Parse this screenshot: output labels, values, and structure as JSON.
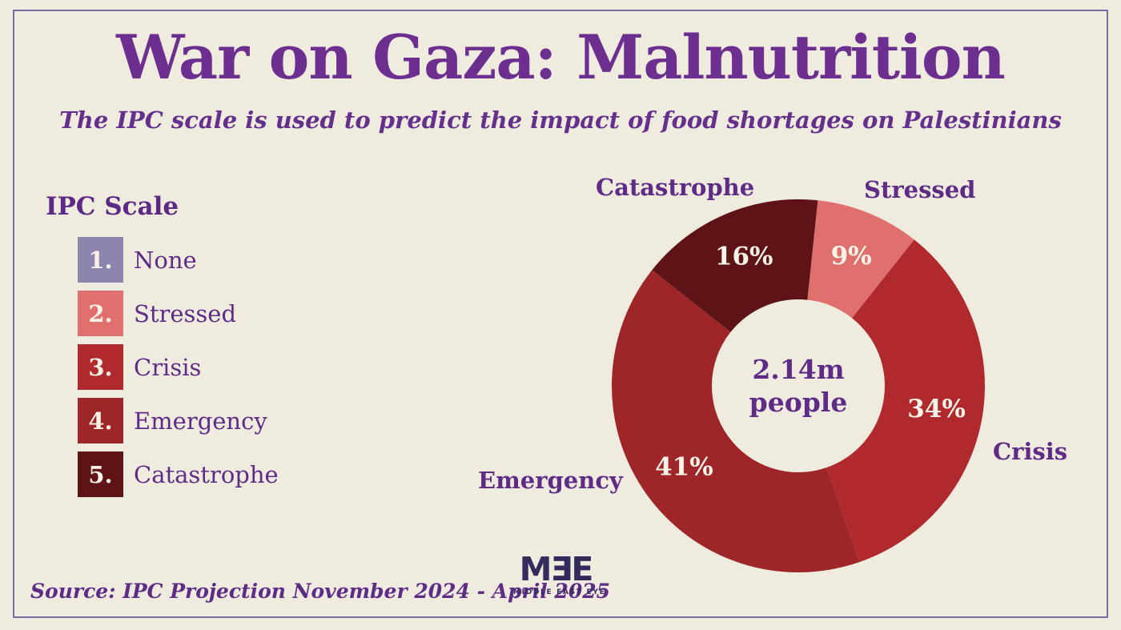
{
  "page": {
    "title": "War on Gaza: Malnutrition",
    "subtitle": "The IPC scale is used to predict the impact of food shortages on Palestinians",
    "source": "Source: IPC Projection November 2024 - April 2025",
    "background_color": "#f0ebdf",
    "border_color": "#7e68a2",
    "accent_purple": "#6c2f8f"
  },
  "legend": {
    "title": "IPC Scale",
    "items": [
      {
        "number": "1.",
        "label": "None",
        "color": "#8d85ae"
      },
      {
        "number": "2.",
        "label": "Stressed",
        "color": "#df706e"
      },
      {
        "number": "3.",
        "label": "Crisis",
        "color": "#b02a2d"
      },
      {
        "number": "4.",
        "label": "Emergency",
        "color": "#9e2629"
      },
      {
        "number": "5.",
        "label": "Catastrophe",
        "color": "#5e1416"
      }
    ]
  },
  "chart_data": {
    "type": "pie",
    "subtype": "donut",
    "title": "War on Gaza: Malnutrition",
    "center_label": {
      "line1": "2.14m",
      "line2": "people"
    },
    "start_angle_deg_clockwise_from_top": 6,
    "segments": [
      {
        "label": "Stressed",
        "value": 9,
        "data_label": "9%",
        "color": "#df706e"
      },
      {
        "label": "Crisis",
        "value": 34,
        "data_label": "34%",
        "color": "#b02a2d"
      },
      {
        "label": "Emergency",
        "value": 41,
        "data_label": "41%",
        "color": "#9e2629"
      },
      {
        "label": "Catastrophe",
        "value": 16,
        "data_label": "16%",
        "color": "#5e1416"
      }
    ]
  },
  "logo": {
    "mark": "MƎE",
    "subtext": "MIDDLE EAST EYE"
  }
}
